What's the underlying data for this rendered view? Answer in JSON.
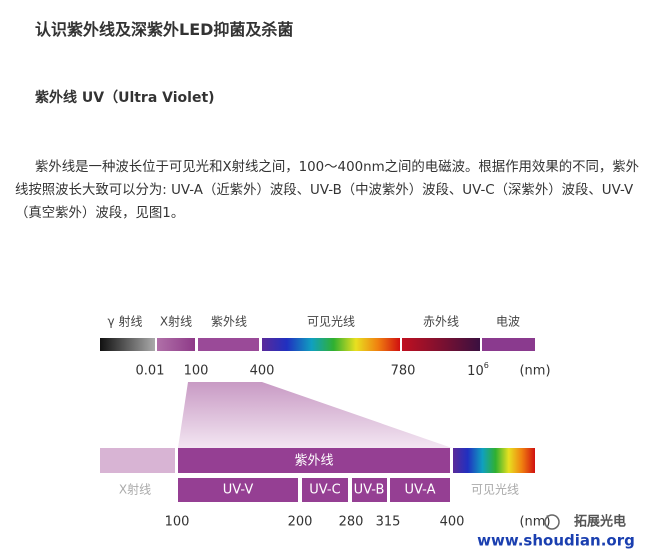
{
  "title": "认识紫外线及深紫外LED抑菌及杀菌",
  "subtitle": "紫外线 UV（Ultra Violet)",
  "paragraph": "紫外线是一种波长位于可见光和X射线之间，100～400nm之间的电磁波。根据作用效果的不同，紫外线按照波长大致可以分为: UV-A（近紫外）波段、UV-B（中波紫外）波段、UV-C（深紫外）波段、UV-V（真空紫外）波段，见图1。",
  "figure": {
    "top_bands": [
      "γ 射线",
      "X射线",
      "紫外线",
      "可见光线",
      "赤外线",
      "电波"
    ],
    "top_scale": [
      "0.01",
      "100",
      "400",
      "780",
      {
        "base": "10",
        "exp": "6"
      }
    ],
    "unit": "(nm)",
    "uv_label": "紫外线",
    "x_label": "X射线",
    "uv_bands": [
      "UV-V",
      "UV-C",
      "UV-B",
      "UV-A"
    ],
    "visible_label": "可见光线",
    "bottom_scale": [
      "100",
      "200",
      "280",
      "315",
      "400"
    ]
  },
  "watermark": {
    "brand": "拓展光电",
    "url": "www.shoudian.org"
  }
}
